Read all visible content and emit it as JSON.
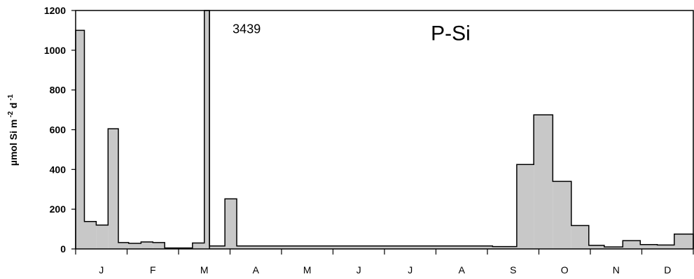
{
  "chart_data": {
    "type": "area",
    "title": "",
    "xlabel": "",
    "ylabel": {
      "base": "µmol Si m",
      "sup1": " -2",
      "mid": " d",
      "sup2": " -1"
    },
    "ylim": [
      0,
      1200
    ],
    "xlim": [
      0,
      12
    ],
    "yticks": [
      0,
      200,
      400,
      600,
      800,
      1000,
      1200
    ],
    "xticks": [
      0,
      1,
      2,
      3,
      4,
      5,
      6,
      7,
      8,
      9,
      10,
      11,
      12
    ],
    "month_labels": [
      "J",
      "F",
      "M",
      "A",
      "M",
      "J",
      "J",
      "A",
      "S",
      "O",
      "N",
      "D"
    ],
    "grid": false,
    "series": [
      {
        "fill_color": "#c8c8c8",
        "line_color": "#000000",
        "segments": [
          {
            "x0": 0.0,
            "x1": 0.17,
            "y": 1100
          },
          {
            "x0": 0.17,
            "x1": 0.4,
            "y": 138
          },
          {
            "x0": 0.4,
            "x1": 0.63,
            "y": 120
          },
          {
            "x0": 0.63,
            "x1": 0.83,
            "y": 605
          },
          {
            "x0": 0.83,
            "x1": 1.03,
            "y": 32
          },
          {
            "x0": 1.03,
            "x1": 1.27,
            "y": 28
          },
          {
            "x0": 1.27,
            "x1": 1.5,
            "y": 35
          },
          {
            "x0": 1.5,
            "x1": 1.73,
            "y": 32
          },
          {
            "x0": 1.73,
            "x1": 2.27,
            "y": 5
          },
          {
            "x0": 2.27,
            "x1": 2.5,
            "y": 30
          },
          {
            "x0": 2.5,
            "x1": 2.6,
            "y": 3439
          },
          {
            "x0": 2.6,
            "x1": 2.9,
            "y": 15
          },
          {
            "x0": 2.9,
            "x1": 3.13,
            "y": 252
          },
          {
            "x0": 3.13,
            "x1": 8.1,
            "y": 15
          },
          {
            "x0": 8.1,
            "x1": 8.57,
            "y": 12
          },
          {
            "x0": 8.57,
            "x1": 8.9,
            "y": 425
          },
          {
            "x0": 8.9,
            "x1": 9.27,
            "y": 675
          },
          {
            "x0": 9.27,
            "x1": 9.63,
            "y": 340
          },
          {
            "x0": 9.63,
            "x1": 9.97,
            "y": 118
          },
          {
            "x0": 9.97,
            "x1": 10.27,
            "y": 18
          },
          {
            "x0": 10.27,
            "x1": 10.63,
            "y": 10
          },
          {
            "x0": 10.63,
            "x1": 10.97,
            "y": 42
          },
          {
            "x0": 10.97,
            "x1": 11.3,
            "y": 22
          },
          {
            "x0": 11.3,
            "x1": 11.63,
            "y": 20
          },
          {
            "x0": 11.63,
            "x1": 12.0,
            "y": 75
          }
        ]
      }
    ],
    "annotations": [
      {
        "text": "3439",
        "x": 3.05,
        "y": 1085
      },
      {
        "text": "P-Si",
        "x": 6.9,
        "y": 1050
      }
    ],
    "divider_x": 2.6
  }
}
